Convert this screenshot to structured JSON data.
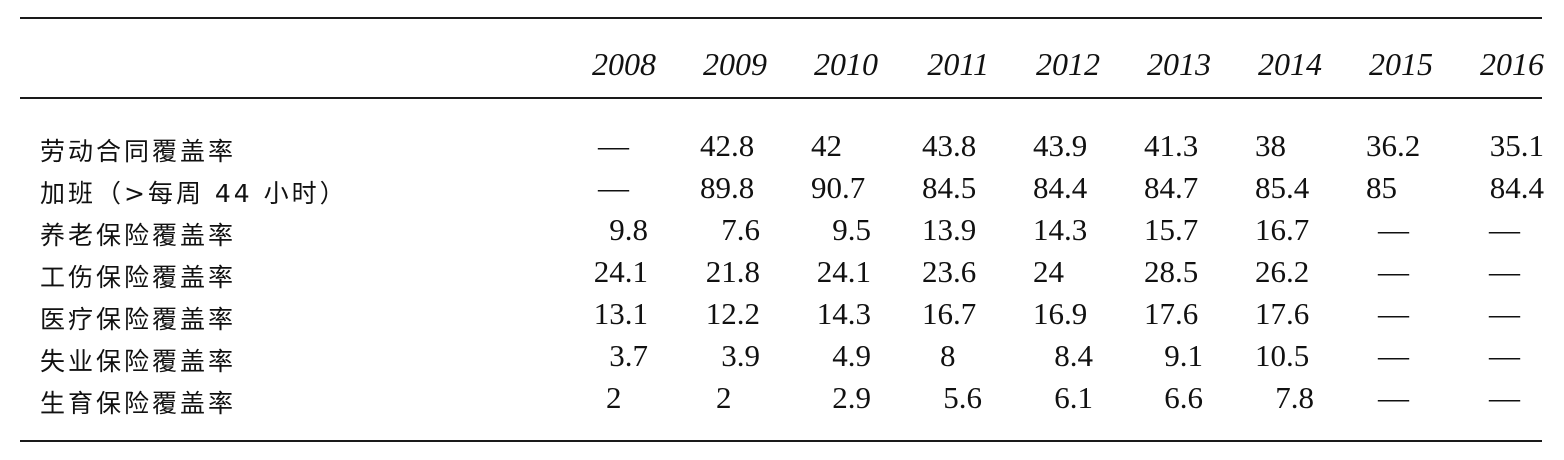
{
  "table": {
    "years": [
      "2008",
      "2009",
      "2010",
      "2011",
      "2012",
      "2013",
      "2014",
      "2015",
      "2016"
    ],
    "rows": [
      {
        "label": "劳动合同覆盖率",
        "values": [
          "—",
          "42.8",
          "42",
          "43.8",
          "43.9",
          "41.3",
          "38",
          "36.2",
          "35.1"
        ]
      },
      {
        "label": "加班（>每周 44 小时）",
        "values": [
          "—",
          "89.8",
          "90.7",
          "84.5",
          "84.4",
          "84.7",
          "85.4",
          "85",
          "84.4"
        ]
      },
      {
        "label": "养老保险覆盖率",
        "values": [
          "9.8",
          "7.6",
          "9.5",
          "13.9",
          "14.3",
          "15.7",
          "16.7",
          "—",
          "—"
        ]
      },
      {
        "label": "工伤保险覆盖率",
        "values": [
          "24.1",
          "21.8",
          "24.1",
          "23.6",
          "24",
          "28.5",
          "26.2",
          "—",
          "—"
        ]
      },
      {
        "label": "医疗保险覆盖率",
        "values": [
          "13.1",
          "12.2",
          "14.3",
          "16.7",
          "16.9",
          "17.6",
          "17.6",
          "—",
          "—"
        ]
      },
      {
        "label": "失业保险覆盖率",
        "values": [
          "3.7",
          "3.9",
          "4.9",
          "8",
          "8.4",
          "9.1",
          "10.5",
          "—",
          "—"
        ]
      },
      {
        "label": "生育保险覆盖率",
        "values": [
          "2",
          "2",
          "2.9",
          "5.6",
          "6.1",
          "6.6",
          "7.8",
          "—",
          "—"
        ]
      }
    ]
  }
}
